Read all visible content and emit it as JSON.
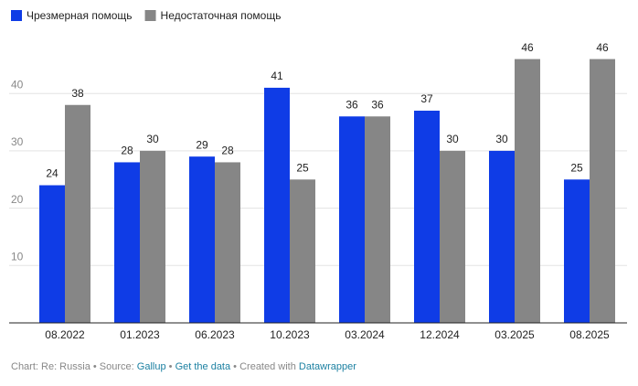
{
  "chart_data": {
    "type": "bar",
    "categories": [
      "08.2022",
      "01.2023",
      "06.2023",
      "10.2023",
      "03.2024",
      "12.2024",
      "03.2025",
      "08.2025"
    ],
    "series": [
      {
        "name": "Чрезмерная помощь",
        "color": "#0f3ce6",
        "values": [
          24,
          28,
          29,
          41,
          36,
          37,
          30,
          25
        ]
      },
      {
        "name": "Недостаточная помощь",
        "color": "#868686",
        "values": [
          38,
          30,
          28,
          25,
          36,
          30,
          46,
          46
        ]
      }
    ],
    "ylim": [
      0,
      50
    ],
    "yticks": [
      10,
      20,
      30,
      40
    ],
    "grid": true,
    "legend": "top-left"
  },
  "footer": {
    "chart_by": "Chart: Re: Russia",
    "separator": "•",
    "source_label": "Source:",
    "source": "Gallup",
    "get_data": "Get the data",
    "created": "Created with",
    "tool": "Datawrapper"
  }
}
